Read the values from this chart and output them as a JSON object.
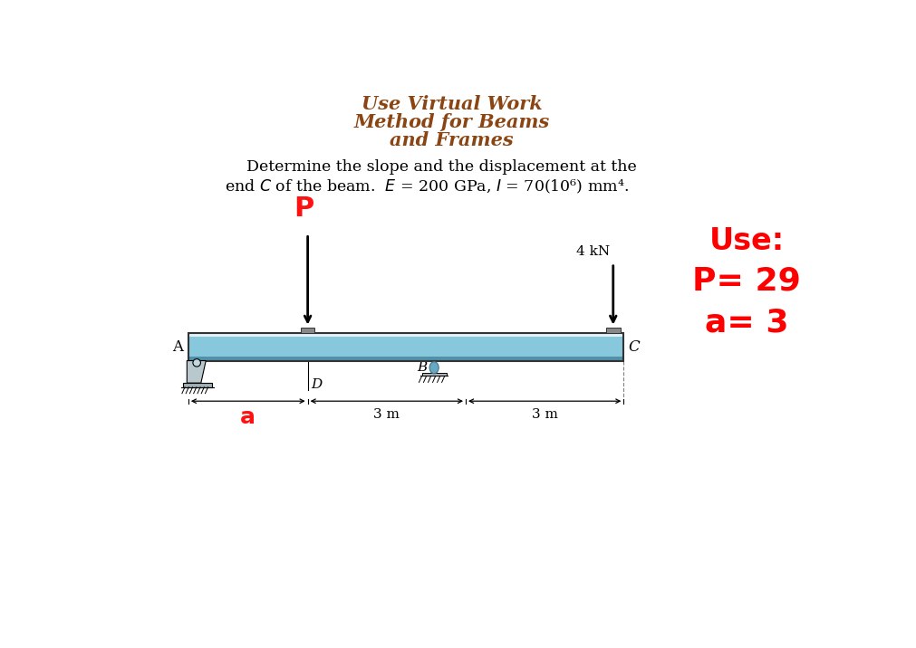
{
  "title_line1": "Use Virtual Work",
  "title_line2": "Method for Beams",
  "title_line3": "and Frames",
  "title_color": "#8B4513",
  "desc_line1": "Determine the slope and the displacement at the",
  "desc_line2": "end $C$ of the beam.  $E$ = 200 GPa, $I$ = 70(10⁶) mm⁴.",
  "use_label": "Use:",
  "P_label": "P= 29",
  "a_label": "a= 3",
  "use_color": "#FF0000",
  "dim_3m_1": "3 m",
  "dim_3m_2": "3 m",
  "label_a": "a",
  "label_D": "D",
  "label_B": "B",
  "label_A": "A",
  "label_C": "C",
  "label_P": "P",
  "load_4kN": "4 kN",
  "bg_color": "#FFFFFF",
  "beam_color_light": "#C8E8F0",
  "beam_color_mid": "#7ABCD0",
  "beam_color_dark": "#5090A8",
  "beam_edge_color": "#333333"
}
